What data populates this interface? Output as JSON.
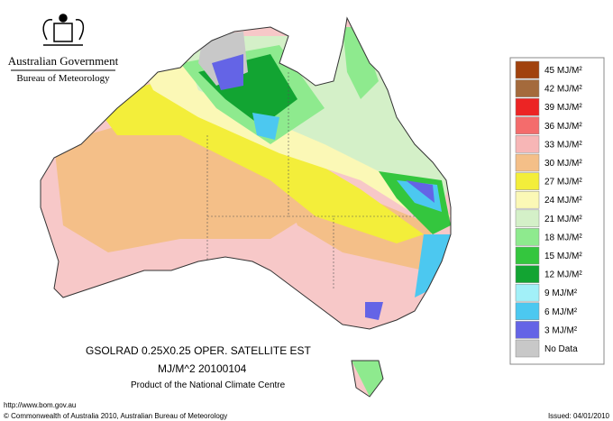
{
  "header": {
    "org": "Australian Government",
    "bureau": "Bureau of Meteorology"
  },
  "product": {
    "line1": "GSOLRAD   0.25X0.25 OPER. SATELLITE EST",
    "line2": "MJ/M^2  20100104",
    "line3": "Product of the National Climate Centre"
  },
  "legend": [
    {
      "label": "45 MJ/M²",
      "color": "#a1420e"
    },
    {
      "label": "42 MJ/M²",
      "color": "#a46a3c"
    },
    {
      "label": "39 MJ/M²",
      "color": "#ec2424"
    },
    {
      "label": "36 MJ/M²",
      "color": "#f46c6c"
    },
    {
      "label": "33 MJ/M²",
      "color": "#f7b6b6"
    },
    {
      "label": "30 MJ/M²",
      "color": "#f4bf88"
    },
    {
      "label": "27 MJ/M²",
      "color": "#f3ee3a"
    },
    {
      "label": "24 MJ/M²",
      "color": "#fbf8b6"
    },
    {
      "label": "21 MJ/M²",
      "color": "#d4f0c8"
    },
    {
      "label": "18 MJ/M²",
      "color": "#8eea8e"
    },
    {
      "label": "15 MJ/M²",
      "color": "#34c63e"
    },
    {
      "label": "12 MJ/M²",
      "color": "#12a432"
    },
    {
      "label": "9 MJ/M²",
      "color": "#a2f0f8"
    },
    {
      "label": "6 MJ/M²",
      "color": "#4cc8f0"
    },
    {
      "label": "3 MJ/M²",
      "color": "#6464e6"
    },
    {
      "label": "No Data",
      "color": "#c8c8c8"
    }
  ],
  "footer": {
    "url": "http://www.bom.gov.au",
    "copyright": "© Commonwealth of Australia 2010, Australian Bureau of Meteorology",
    "issued": "Issued: 04/01/2010"
  }
}
